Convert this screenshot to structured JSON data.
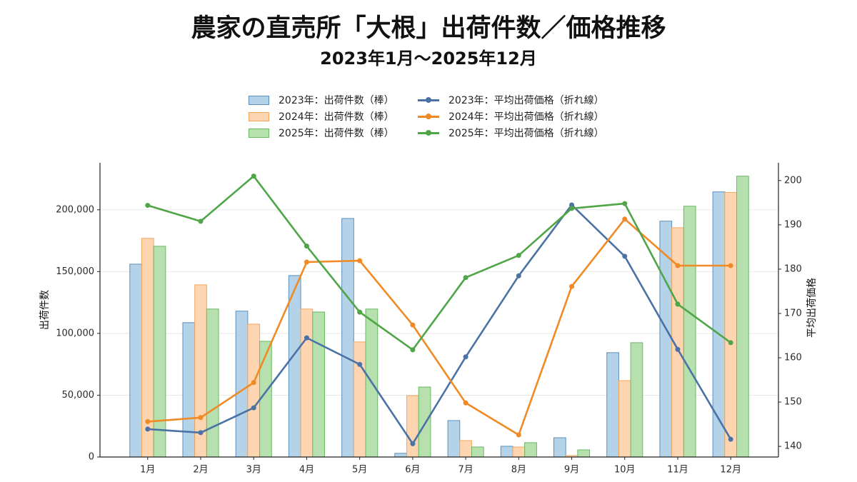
{
  "chart_data": {
    "type": "bar",
    "title": "農家の直売所「大根」出荷件数／価格推移",
    "subtitle": "2023年1月～2025年12月",
    "categories": [
      "1月",
      "2月",
      "3月",
      "4月",
      "5月",
      "6月",
      "7月",
      "8月",
      "9月",
      "10月",
      "11月",
      "12月"
    ],
    "ylabel": "出荷件数",
    "ylabel_right": "平均出荷価格",
    "ylim": [
      0,
      238000
    ],
    "ylim_right": [
      137.6,
      204
    ],
    "yticks": [
      0,
      50000,
      100000,
      150000,
      200000
    ],
    "ytick_labels": [
      "0",
      "50,000",
      "100,000",
      "150,000",
      "200,000"
    ],
    "yticks_right": [
      140,
      150,
      160,
      170,
      180,
      190,
      200
    ],
    "grid": true,
    "legend_position": "top-center",
    "series": [
      {
        "name": "2023年：出荷件数（棒）",
        "type": "bar",
        "axis": "left",
        "fill": "#b4d3e8",
        "edge": "#5b8fbf",
        "values": [
          156000,
          108700,
          118000,
          146800,
          193000,
          3000,
          29500,
          8700,
          15600,
          84400,
          190800,
          214500
        ]
      },
      {
        "name": "2024年：出荷件数（棒）",
        "type": "bar",
        "axis": "left",
        "fill": "#fdd6b1",
        "edge": "#f1a75f",
        "values": [
          176900,
          139300,
          107500,
          119700,
          93100,
          49700,
          13300,
          8100,
          1200,
          61800,
          185500,
          214000
        ]
      },
      {
        "name": "2025年：出荷件数（棒）",
        "type": "bar",
        "axis": "left",
        "fill": "#b6e0ae",
        "edge": "#6ab863",
        "values": [
          170500,
          119700,
          93600,
          117300,
          119700,
          56600,
          8100,
          11600,
          5800,
          92500,
          202900,
          227200
        ]
      },
      {
        "name": "2023年：平均出荷価格（折れ線）",
        "type": "line",
        "axis": "right",
        "color": "#4b72a5",
        "values": [
          143.9,
          143.1,
          148.7,
          164.5,
          158.5,
          140.6,
          160.2,
          178.5,
          194.5,
          182.9,
          161.9,
          141.6
        ]
      },
      {
        "name": "2024年：平均出荷価格（折れ線）",
        "type": "line",
        "axis": "right",
        "color": "#f08a24",
        "values": [
          145.6,
          146.5,
          154.4,
          181.6,
          181.9,
          167.4,
          149.8,
          142.6,
          176.1,
          191.3,
          180.8,
          180.8
        ]
      },
      {
        "name": "2025年：平均出荷価格（折れ線）",
        "type": "line",
        "axis": "right",
        "color": "#4fa548",
        "values": [
          194.4,
          190.8,
          201.0,
          185.2,
          170.3,
          161.8,
          178.1,
          183.1,
          193.7,
          194.8,
          172.1,
          163.4
        ]
      }
    ]
  }
}
